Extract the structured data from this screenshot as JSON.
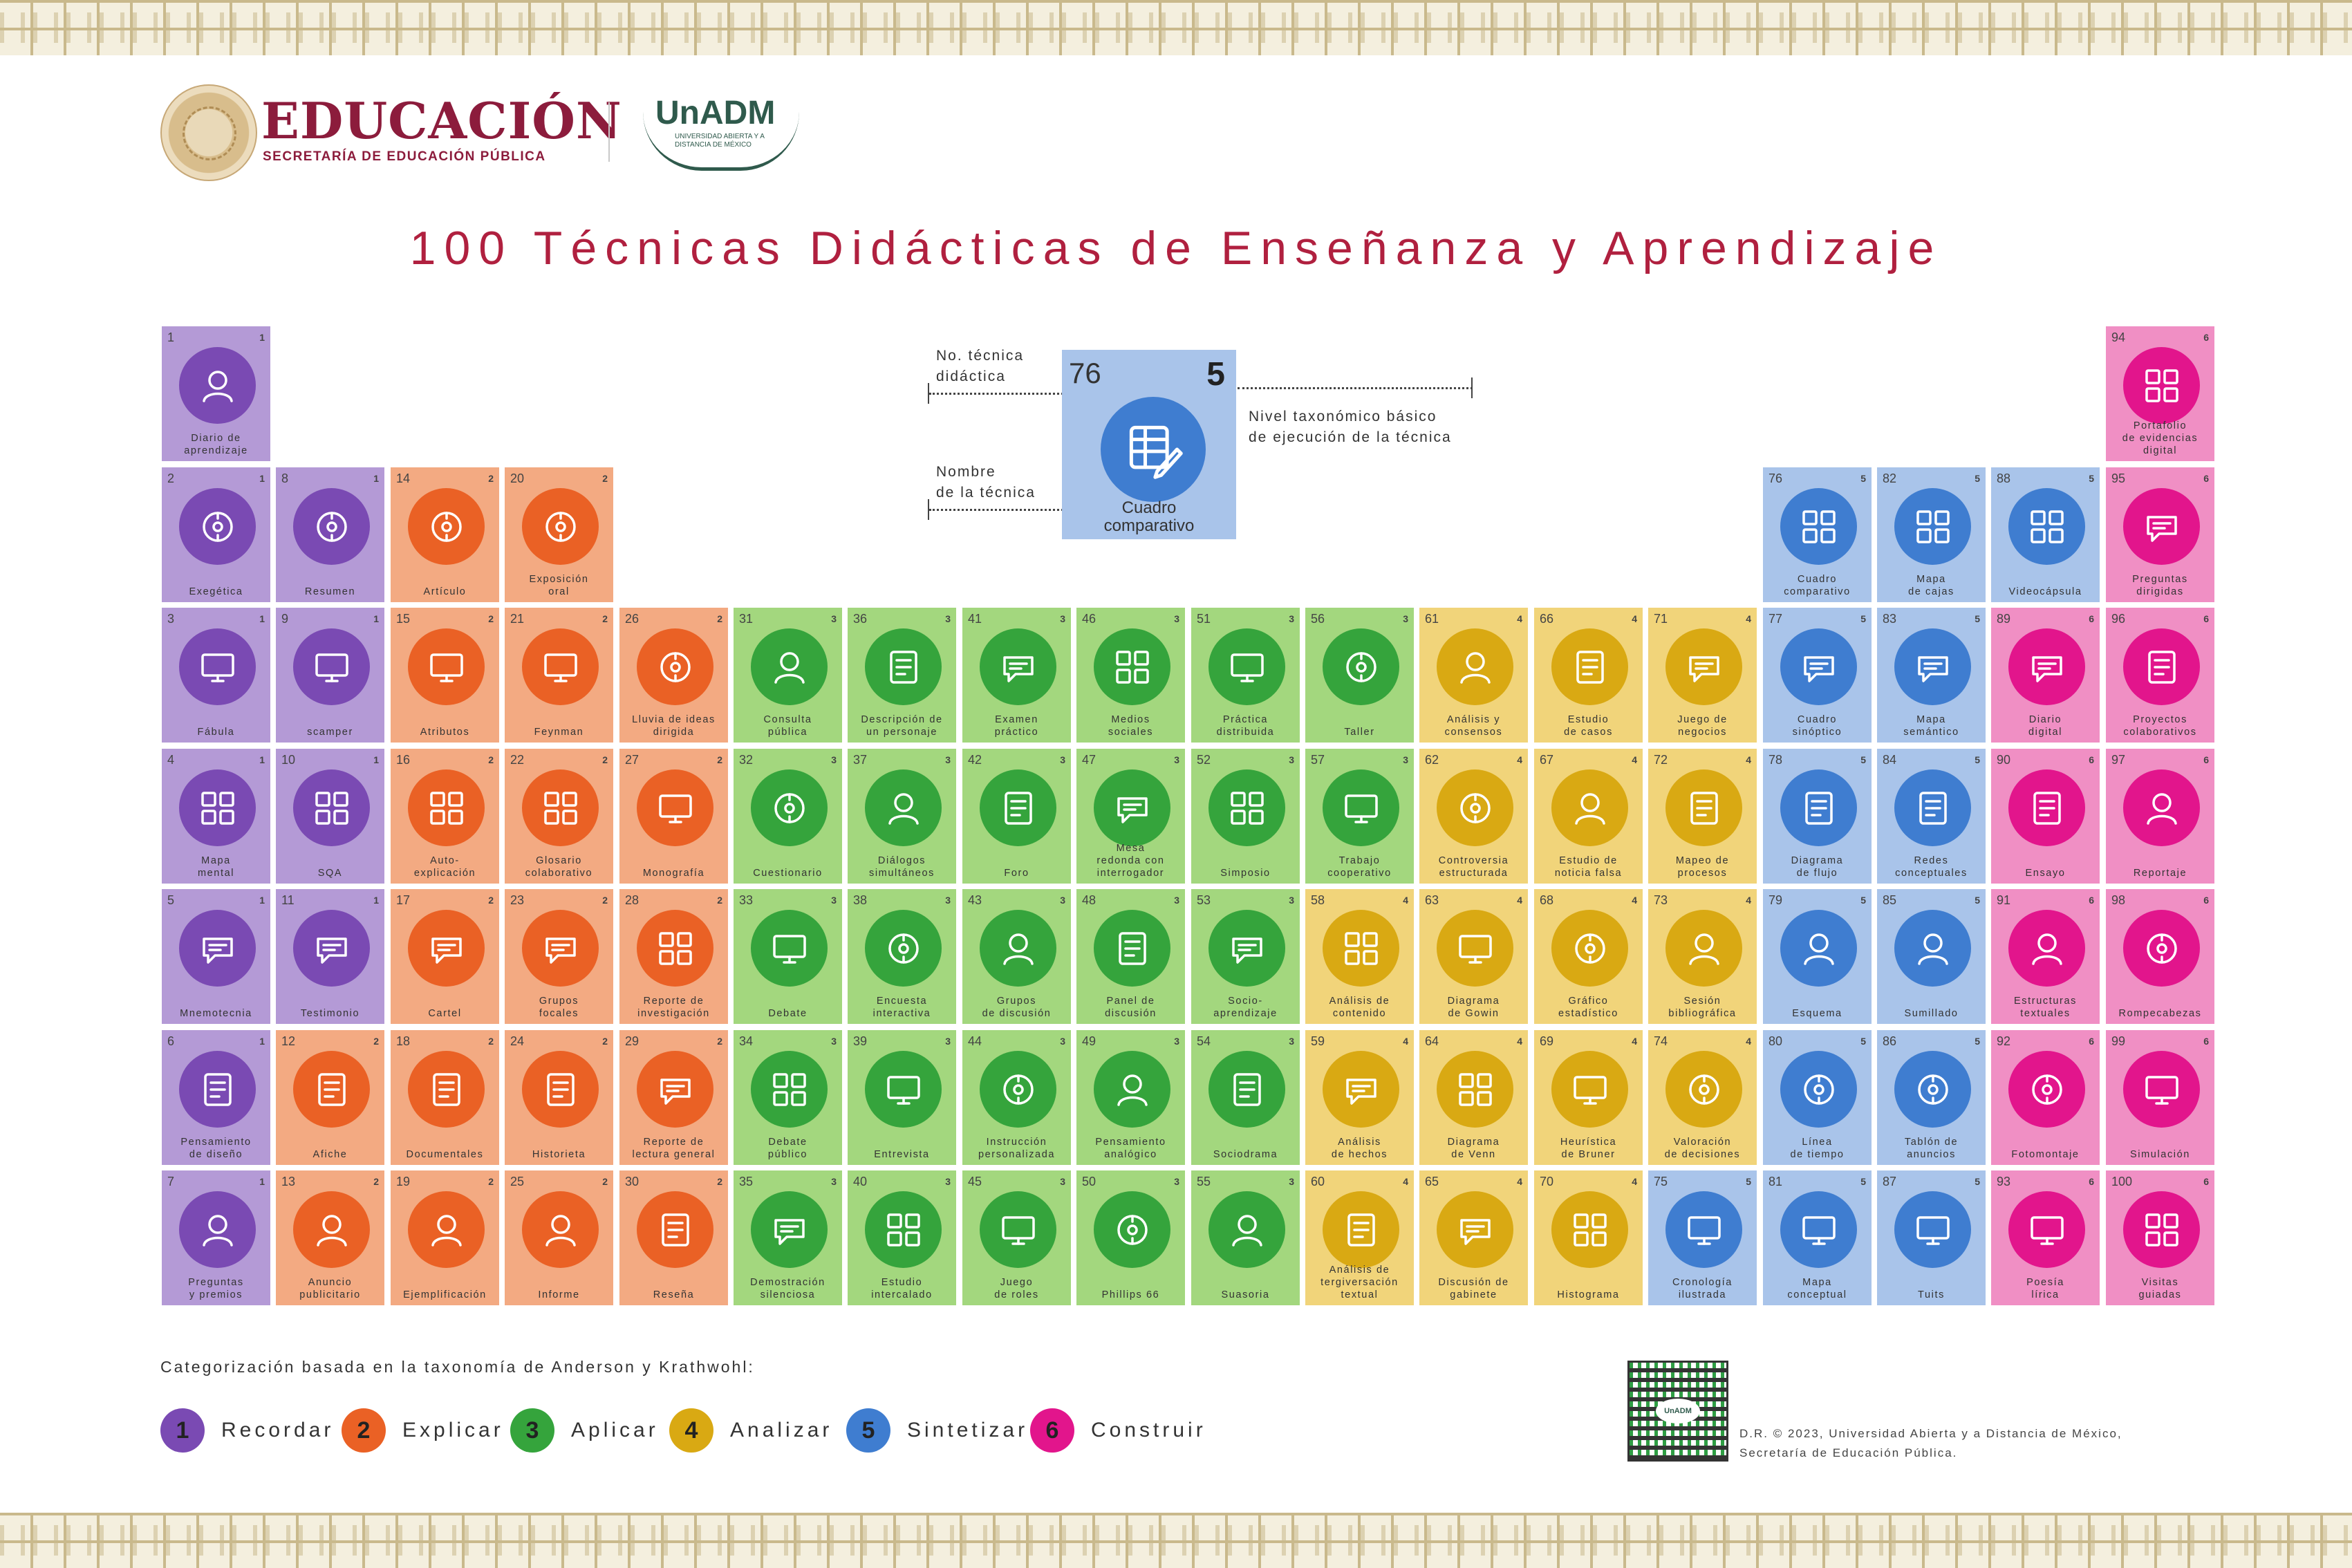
{
  "header": {
    "educacion": "EDUCACIÓN",
    "educacion_sub": "SECRETARÍA DE EDUCACIÓN PÚBLICA",
    "unadm": "UnADM",
    "unadm_sub": "UNIVERSIDAD ABIERTA Y A DISTANCIA DE MÉXICO",
    "seal_text": "ESTADOS UNIDOS MEXICANOS"
  },
  "title": "100 Técnicas Didácticas de Enseñanza y Aprendizaje",
  "colors": {
    "1": {
      "bg": "#b49ad6",
      "icon": "#7a4ab3"
    },
    "2": {
      "bg": "#f3aa82",
      "icon": "#ea6125"
    },
    "3": {
      "bg": "#a3d77e",
      "icon": "#35a43c"
    },
    "4": {
      "bg": "#f1d47a",
      "icon": "#d9a913"
    },
    "5": {
      "bg": "#a9c4ea",
      "icon": "#3f7dd0"
    },
    "6": {
      "bg": "#f08fc4",
      "icon": "#e2158c"
    }
  },
  "legend": {
    "no_tecnica_label": "No. técnica\ndidáctica",
    "nombre_label": "Nombre\nde la técnica",
    "nivel_label": "Nivel taxonómico básico\nde ejecución de la técnica",
    "example_num": "76",
    "example_level": "5",
    "example_name": "Cuadro\ncomparativo",
    "example_icon": "table-pencil-icon"
  },
  "techniques": [
    {
      "n": 1,
      "c": 1,
      "r": 0,
      "l": 1,
      "name": "Diario de\naprendizaje",
      "icon": "diary-heart-icon"
    },
    {
      "n": 2,
      "c": 1,
      "r": 1,
      "l": 1,
      "name": "Exegética",
      "icon": "head-network-icon"
    },
    {
      "n": 3,
      "c": 1,
      "r": 2,
      "l": 1,
      "name": "Fábula",
      "icon": "rabbit-bubble-icon"
    },
    {
      "n": 4,
      "c": 1,
      "r": 3,
      "l": 1,
      "name": "Mapa\nmental",
      "icon": "mind-map-icon"
    },
    {
      "n": 5,
      "c": 1,
      "r": 4,
      "l": 1,
      "name": "Mnemotecnia",
      "icon": "abc-blocks-icon"
    },
    {
      "n": 6,
      "c": 1,
      "r": 5,
      "l": 1,
      "name": "Pensamiento\nde diseño",
      "icon": "head-gears-icon"
    },
    {
      "n": 7,
      "c": 1,
      "r": 6,
      "l": 1,
      "name": "Preguntas\ny premios",
      "icon": "prize-box-icon"
    },
    {
      "n": 8,
      "c": 2,
      "r": 1,
      "l": 1,
      "name": "Resumen",
      "icon": "document-icon"
    },
    {
      "n": 9,
      "c": 2,
      "r": 2,
      "l": 1,
      "name": "scamper",
      "icon": "scroll-list-icon"
    },
    {
      "n": 10,
      "c": 2,
      "r": 3,
      "l": 1,
      "name": "SQA",
      "icon": "sqa-grid-icon"
    },
    {
      "n": 11,
      "c": 2,
      "r": 4,
      "l": 1,
      "name": "Testimonio",
      "icon": "person-star-icon"
    },
    {
      "n": 12,
      "c": 2,
      "r": 5,
      "l": 2,
      "name": "Afiche",
      "icon": "poster-icon"
    },
    {
      "n": 13,
      "c": 2,
      "r": 6,
      "l": 2,
      "name": "Anuncio\npublicitario",
      "icon": "target-person-icon"
    },
    {
      "n": 14,
      "c": 3,
      "r": 1,
      "l": 2,
      "name": "Artículo",
      "icon": "article-icon"
    },
    {
      "n": 15,
      "c": 3,
      "r": 2,
      "l": 2,
      "name": "Atributos",
      "icon": "checklist-icon"
    },
    {
      "n": 16,
      "c": 3,
      "r": 3,
      "l": 2,
      "name": "Auto-\nexplicación",
      "icon": "head-egg-icon"
    },
    {
      "n": 17,
      "c": 3,
      "r": 4,
      "l": 2,
      "name": "Cartel",
      "icon": "clipboard-board-icon"
    },
    {
      "n": 18,
      "c": 3,
      "r": 5,
      "l": 2,
      "name": "Documentales",
      "icon": "clapperboard-icon"
    },
    {
      "n": 19,
      "c": 3,
      "r": 6,
      "l": 2,
      "name": "Ejemplificación",
      "icon": "hand-board-icon"
    },
    {
      "n": 20,
      "c": 4,
      "r": 1,
      "l": 2,
      "name": "Exposición\noral",
      "icon": "presenter-icon"
    },
    {
      "n": 21,
      "c": 4,
      "r": 2,
      "l": 2,
      "name": "Feynman",
      "icon": "lightbulb-person-icon"
    },
    {
      "n": 22,
      "c": 4,
      "r": 3,
      "l": 2,
      "name": "Glosario\ncolaborativo",
      "icon": "az-book-icon"
    },
    {
      "n": 23,
      "c": 4,
      "r": 4,
      "l": 2,
      "name": "Grupos\nfocales",
      "icon": "focus-group-icon"
    },
    {
      "n": 24,
      "c": 4,
      "r": 5,
      "l": 2,
      "name": "Historieta",
      "icon": "comic-burst-icon"
    },
    {
      "n": 25,
      "c": 4,
      "r": 6,
      "l": 2,
      "name": "Informe",
      "icon": "report-check-icon"
    },
    {
      "n": 26,
      "c": 5,
      "r": 2,
      "l": 2,
      "name": "Lluvia de ideas\ndirigida",
      "icon": "idea-group-icon"
    },
    {
      "n": 27,
      "c": 5,
      "r": 3,
      "l": 2,
      "name": "Monografía",
      "icon": "person-question-icon"
    },
    {
      "n": 28,
      "c": 5,
      "r": 4,
      "l": 2,
      "name": "Reporte de\ninvestigación",
      "icon": "tablet-pen-icon"
    },
    {
      "n": 29,
      "c": 5,
      "r": 5,
      "l": 2,
      "name": "Reporte de\nlectura general",
      "icon": "reading-report-icon"
    },
    {
      "n": 30,
      "c": 5,
      "r": 6,
      "l": 2,
      "name": "Reseña",
      "icon": "review-list-icon"
    },
    {
      "n": 31,
      "c": 6,
      "r": 2,
      "l": 3,
      "name": "Consulta\npública",
      "icon": "raised-hands-icon"
    },
    {
      "n": 32,
      "c": 6,
      "r": 3,
      "l": 3,
      "name": "Cuestionario",
      "icon": "questionnaire-icon"
    },
    {
      "n": 33,
      "c": 6,
      "r": 4,
      "l": 3,
      "name": "Debate",
      "icon": "speech-bubbles-icon"
    },
    {
      "n": 34,
      "c": 6,
      "r": 5,
      "l": 3,
      "name": "Debate\npúblico",
      "icon": "podium-debate-icon"
    },
    {
      "n": 35,
      "c": 6,
      "r": 6,
      "l": 3,
      "name": "Demostración\nsilenciosa",
      "icon": "shield-monitor-icon"
    },
    {
      "n": 36,
      "c": 7,
      "r": 2,
      "l": 3,
      "name": "Descripción de\nun personaje",
      "icon": "character-scroll-icon"
    },
    {
      "n": 37,
      "c": 7,
      "r": 3,
      "l": 3,
      "name": "Diálogos\nsimultáneos",
      "icon": "dialog-group-icon"
    },
    {
      "n": 38,
      "c": 7,
      "r": 4,
      "l": 3,
      "name": "Encuesta\ninteractiva",
      "icon": "survey-window-icon"
    },
    {
      "n": 39,
      "c": 7,
      "r": 5,
      "l": 3,
      "name": "Entrevista",
      "icon": "interview-icon"
    },
    {
      "n": 40,
      "c": 7,
      "r": 6,
      "l": 3,
      "name": "Estudio\nintercalado",
      "icon": "books-clock-icon"
    },
    {
      "n": 41,
      "c": 8,
      "r": 2,
      "l": 3,
      "name": "Examen\npráctico",
      "icon": "head-gear-icon"
    },
    {
      "n": 42,
      "c": 8,
      "r": 3,
      "l": 3,
      "name": "Foro",
      "icon": "forum-network-icon"
    },
    {
      "n": 43,
      "c": 8,
      "r": 4,
      "l": 3,
      "name": "Grupos\nde discusión",
      "icon": "discussion-table-icon"
    },
    {
      "n": 44,
      "c": 8,
      "r": 5,
      "l": 3,
      "name": "Instrucción\npersonalizada",
      "icon": "tutor-screen-icon"
    },
    {
      "n": 45,
      "c": 8,
      "r": 6,
      "l": 3,
      "name": "Juego\nde roles",
      "icon": "role-person-icon"
    },
    {
      "n": 46,
      "c": 9,
      "r": 2,
      "l": 3,
      "name": "Medios\nsociales",
      "icon": "social-phone-icon"
    },
    {
      "n": 47,
      "c": 9,
      "r": 3,
      "l": 3,
      "name": "Mesa\nredonda con\ninterrogador",
      "icon": "round-table-icon"
    },
    {
      "n": 48,
      "c": 9,
      "r": 4,
      "l": 3,
      "name": "Panel de\ndiscusión",
      "icon": "panel-table-icon"
    },
    {
      "n": 49,
      "c": 9,
      "r": 5,
      "l": 3,
      "name": "Pensamiento\nanalógico",
      "icon": "list-compare-icon"
    },
    {
      "n": 50,
      "c": 9,
      "r": 6,
      "l": 3,
      "name": "Phillips 66",
      "icon": "stopwatch-icon"
    },
    {
      "n": 51,
      "c": 10,
      "r": 2,
      "l": 3,
      "name": "Práctica\ndistribuida",
      "icon": "distributed-practice-icon"
    },
    {
      "n": 52,
      "c": 10,
      "r": 3,
      "l": 3,
      "name": "Simposio",
      "icon": "symposium-icon"
    },
    {
      "n": 53,
      "c": 10,
      "r": 4,
      "l": 3,
      "name": "Socio-\naprendizaje",
      "icon": "people-network-icon"
    },
    {
      "n": 54,
      "c": 10,
      "r": 5,
      "l": 3,
      "name": "Sociodrama",
      "icon": "theater-masks-icon"
    },
    {
      "n": 55,
      "c": 10,
      "r": 6,
      "l": 3,
      "name": "Suasoria",
      "icon": "audience-board-icon"
    },
    {
      "n": 56,
      "c": 11,
      "r": 2,
      "l": 3,
      "name": "Taller",
      "icon": "workshop-icon"
    },
    {
      "n": 57,
      "c": 11,
      "r": 3,
      "l": 3,
      "name": "Trabajo\ncooperativo",
      "icon": "handshake-icon"
    },
    {
      "n": 58,
      "c": 11,
      "r": 4,
      "l": 4,
      "name": "Análisis de\ncontenido",
      "icon": "doc-magnifier-icon"
    },
    {
      "n": 59,
      "c": 11,
      "r": 5,
      "l": 4,
      "name": "Análisis\nde hechos",
      "icon": "eye-magnifier-icon"
    },
    {
      "n": 60,
      "c": 11,
      "r": 6,
      "l": 4,
      "name": "Análisis de\ntergiversación\ntextual",
      "icon": "doc-check-icon"
    },
    {
      "n": 61,
      "c": 12,
      "r": 2,
      "l": 4,
      "name": "Análisis y\nconsensos",
      "icon": "consensus-icon"
    },
    {
      "n": 62,
      "c": 12,
      "r": 3,
      "l": 4,
      "name": "Controversia\nestructurada",
      "icon": "check-cross-bubbles-icon"
    },
    {
      "n": 63,
      "c": 12,
      "r": 4,
      "l": 4,
      "name": "Diagrama\nde Gowin",
      "icon": "v-diagram-icon"
    },
    {
      "n": 64,
      "c": 12,
      "r": 5,
      "l": 4,
      "name": "Diagrama\nde Venn",
      "icon": "venn-icon"
    },
    {
      "n": 65,
      "c": 12,
      "r": 6,
      "l": 4,
      "name": "Discusión de\ngabinete",
      "icon": "cabinet-meeting-icon"
    },
    {
      "n": 66,
      "c": 13,
      "r": 2,
      "l": 4,
      "name": "Estudio\nde casos",
      "icon": "book-magnifier-icon"
    },
    {
      "n": 67,
      "c": 13,
      "r": 3,
      "l": 4,
      "name": "Estudio de\nnoticia falsa",
      "icon": "newspaper-icon"
    },
    {
      "n": 68,
      "c": 13,
      "r": 4,
      "l": 4,
      "name": "Gráfico\nestadístico",
      "icon": "bar-chart-icon"
    },
    {
      "n": 69,
      "c": 13,
      "r": 5,
      "l": 4,
      "name": "Heurística\nde Bruner",
      "icon": "head-puzzle-icon"
    },
    {
      "n": 70,
      "c": 13,
      "r": 6,
      "l": 4,
      "name": "Histograma",
      "icon": "histogram-icon"
    },
    {
      "n": 71,
      "c": 14,
      "r": 2,
      "l": 4,
      "name": "Juego de\nnegocios",
      "icon": "business-game-icon"
    },
    {
      "n": 72,
      "c": 14,
      "r": 3,
      "l": 4,
      "name": "Mapeo de\nprocesos",
      "icon": "process-map-icon"
    },
    {
      "n": 73,
      "c": 14,
      "r": 4,
      "l": 4,
      "name": "Sesión\nbibliográfica",
      "icon": "bibliography-icon"
    },
    {
      "n": 74,
      "c": 14,
      "r": 5,
      "l": 4,
      "name": "Valoración\nde decisiones",
      "icon": "decision-gear-icon"
    },
    {
      "n": 75,
      "c": 14,
      "r": 6,
      "l": 5,
      "name": "Cronología\nilustrada",
      "icon": "timeline-clock-icon"
    },
    {
      "n": 76,
      "c": 15,
      "r": 1,
      "l": 5,
      "name": "Cuadro\ncomparativo",
      "icon": "table-pencil-icon"
    },
    {
      "n": 77,
      "c": 15,
      "r": 2,
      "l": 5,
      "name": "Cuadro\nsinóptico",
      "icon": "synoptic-bracket-icon"
    },
    {
      "n": 78,
      "c": 15,
      "r": 3,
      "l": 5,
      "name": "Diagrama\nde flujo",
      "icon": "flowchart-icon"
    },
    {
      "n": 79,
      "c": 15,
      "r": 4,
      "l": 5,
      "name": "Esquema",
      "icon": "outline-icon"
    },
    {
      "n": 80,
      "c": 15,
      "r": 5,
      "l": 5,
      "name": "Línea\nde tiempo",
      "icon": "timeline-tree-icon"
    },
    {
      "n": 81,
      "c": 15,
      "r": 6,
      "l": 5,
      "name": "Mapa\nconceptual",
      "icon": "concept-map-icon"
    },
    {
      "n": 82,
      "c": 16,
      "r": 1,
      "l": 5,
      "name": "Mapa\nde cajas",
      "icon": "box-hierarchy-icon"
    },
    {
      "n": 83,
      "c": 16,
      "r": 2,
      "l": 5,
      "name": "Mapa\nsemántico",
      "icon": "semantic-map-icon"
    },
    {
      "n": 84,
      "c": 16,
      "r": 3,
      "l": 5,
      "name": "Redes\nconceptuales",
      "icon": "network-node-icon"
    },
    {
      "n": 85,
      "c": 16,
      "r": 4,
      "l": 5,
      "name": "Sumillado",
      "icon": "book-pen-icon"
    },
    {
      "n": 86,
      "c": 16,
      "r": 5,
      "l": 5,
      "name": "Tablón de\nanuncios",
      "icon": "bulletin-board-icon"
    },
    {
      "n": 87,
      "c": 16,
      "r": 6,
      "l": 5,
      "name": "Tuits",
      "icon": "bird-icon"
    },
    {
      "n": 88,
      "c": 17,
      "r": 1,
      "l": 5,
      "name": "Videocápsula",
      "icon": "video-play-icon"
    },
    {
      "n": 89,
      "c": 17,
      "r": 2,
      "l": 6,
      "name": "Diario\ndigital",
      "icon": "digital-diary-icon"
    },
    {
      "n": 90,
      "c": 17,
      "r": 3,
      "l": 6,
      "name": "Ensayo",
      "icon": "essay-icon"
    },
    {
      "n": 91,
      "c": 17,
      "r": 4,
      "l": 6,
      "name": "Estructuras\ntextuales",
      "icon": "text-structure-icon"
    },
    {
      "n": 92,
      "c": 17,
      "r": 5,
      "l": 6,
      "name": "Fotomontaje",
      "icon": "photo-icon"
    },
    {
      "n": 93,
      "c": 17,
      "r": 6,
      "l": 6,
      "name": "Poesía\nlírica",
      "icon": "quill-book-icon"
    },
    {
      "n": 94,
      "c": 18,
      "r": 0,
      "l": 6,
      "name": "Portafolio\nde evidencias\ndigital",
      "icon": "portfolio-icon"
    },
    {
      "n": 95,
      "c": 18,
      "r": 1,
      "l": 6,
      "name": "Preguntas\ndirigidas",
      "icon": "questions-person-icon"
    },
    {
      "n": 96,
      "c": 18,
      "r": 2,
      "l": 6,
      "name": "Proyectos\ncolaborativos",
      "icon": "collab-projects-icon"
    },
    {
      "n": 97,
      "c": 18,
      "r": 3,
      "l": 6,
      "name": "Reportaje",
      "icon": "report-magnifier-icon"
    },
    {
      "n": 98,
      "c": 18,
      "r": 4,
      "l": 6,
      "name": "Rompecabezas",
      "icon": "puzzle-icon"
    },
    {
      "n": 99,
      "c": 18,
      "r": 5,
      "l": 6,
      "name": "Simulación",
      "icon": "vr-360-icon"
    },
    {
      "n": 100,
      "c": 18,
      "r": 6,
      "l": 6,
      "name": "Visitas\nguiadas",
      "icon": "guide-person-icon"
    }
  ],
  "categories": {
    "title": "Categorización basada en la taxonomía de Anderson y Krathwohl:",
    "items": [
      {
        "level": "1",
        "label": "Recordar"
      },
      {
        "level": "2",
        "label": "Explicar"
      },
      {
        "level": "3",
        "label": "Aplicar"
      },
      {
        "level": "4",
        "label": "Analizar"
      },
      {
        "level": "5",
        "label": "Sintetizar"
      },
      {
        "level": "6",
        "label": "Construir"
      }
    ]
  },
  "footer": {
    "qr_label": "UnADM",
    "copyright": "D.R. © 2023, Universidad Abierta y a Distancia de México,\nSecretaría de Educación Pública."
  }
}
